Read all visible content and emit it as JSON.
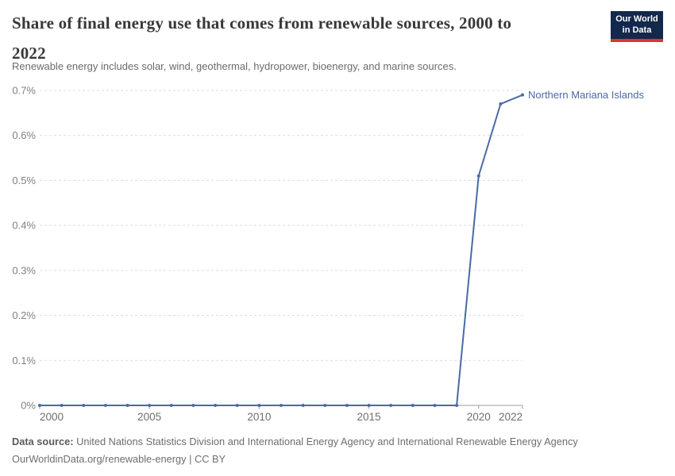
{
  "logo": {
    "line1": "Our World",
    "line2": "in Data"
  },
  "header": {
    "title_line1": "Share of final energy use that comes from renewable sources, 2000 to",
    "title_line2": "2022",
    "subtitle": "Renewable energy includes solar, wind, geothermal, hydropower, bioenergy, and marine sources."
  },
  "chart_data": {
    "type": "line",
    "title": "Share of final energy use that comes from renewable sources, 2000 to 2022",
    "xlabel": "",
    "ylabel": "",
    "unit": "%",
    "x": [
      2000,
      2001,
      2002,
      2003,
      2004,
      2005,
      2006,
      2007,
      2008,
      2009,
      2010,
      2011,
      2012,
      2013,
      2014,
      2015,
      2016,
      2017,
      2018,
      2019,
      2020,
      2021,
      2022
    ],
    "series": [
      {
        "name": "Northern Mariana Islands",
        "color": "#4a6aa5",
        "values": [
          0,
          0,
          0,
          0,
          0,
          0,
          0,
          0,
          0,
          0,
          0,
          0,
          0,
          0,
          0,
          0,
          0,
          0,
          0,
          0,
          0.51,
          0.67,
          0.69
        ]
      }
    ],
    "xlim": [
      2000,
      2022
    ],
    "ylim": [
      0,
      0.7
    ],
    "xticks": [
      2000,
      2005,
      2010,
      2015,
      2020,
      2022
    ],
    "yticks": [
      {
        "value": 0.0,
        "label": "0%"
      },
      {
        "value": 0.1,
        "label": "0.1%"
      },
      {
        "value": 0.2,
        "label": "0.2%"
      },
      {
        "value": 0.3,
        "label": "0.3%"
      },
      {
        "value": 0.4,
        "label": "0.4%"
      },
      {
        "value": 0.5,
        "label": "0.5%"
      },
      {
        "value": 0.6,
        "label": "0.6%"
      },
      {
        "value": 0.7,
        "label": "0.7%"
      }
    ],
    "grid": "horizontal-dashed",
    "legend": "end-of-line-label"
  },
  "footer": {
    "source_label": "Data source:",
    "source_text": "United Nations Statistics Division and International Energy Agency and International Renewable Energy Agency",
    "license": "OurWorldinData.org/renewable-energy | CC BY"
  },
  "colors": {
    "line": "#4a6aa5",
    "series_label": "#4a6aa5",
    "grid": "#dcdcdc",
    "axis": "#9e9e9e",
    "y_tick_text": "#818181",
    "x_tick_text": "#6e6e6e",
    "logo_bg": "#12294d",
    "logo_bar": "#dc372d"
  }
}
